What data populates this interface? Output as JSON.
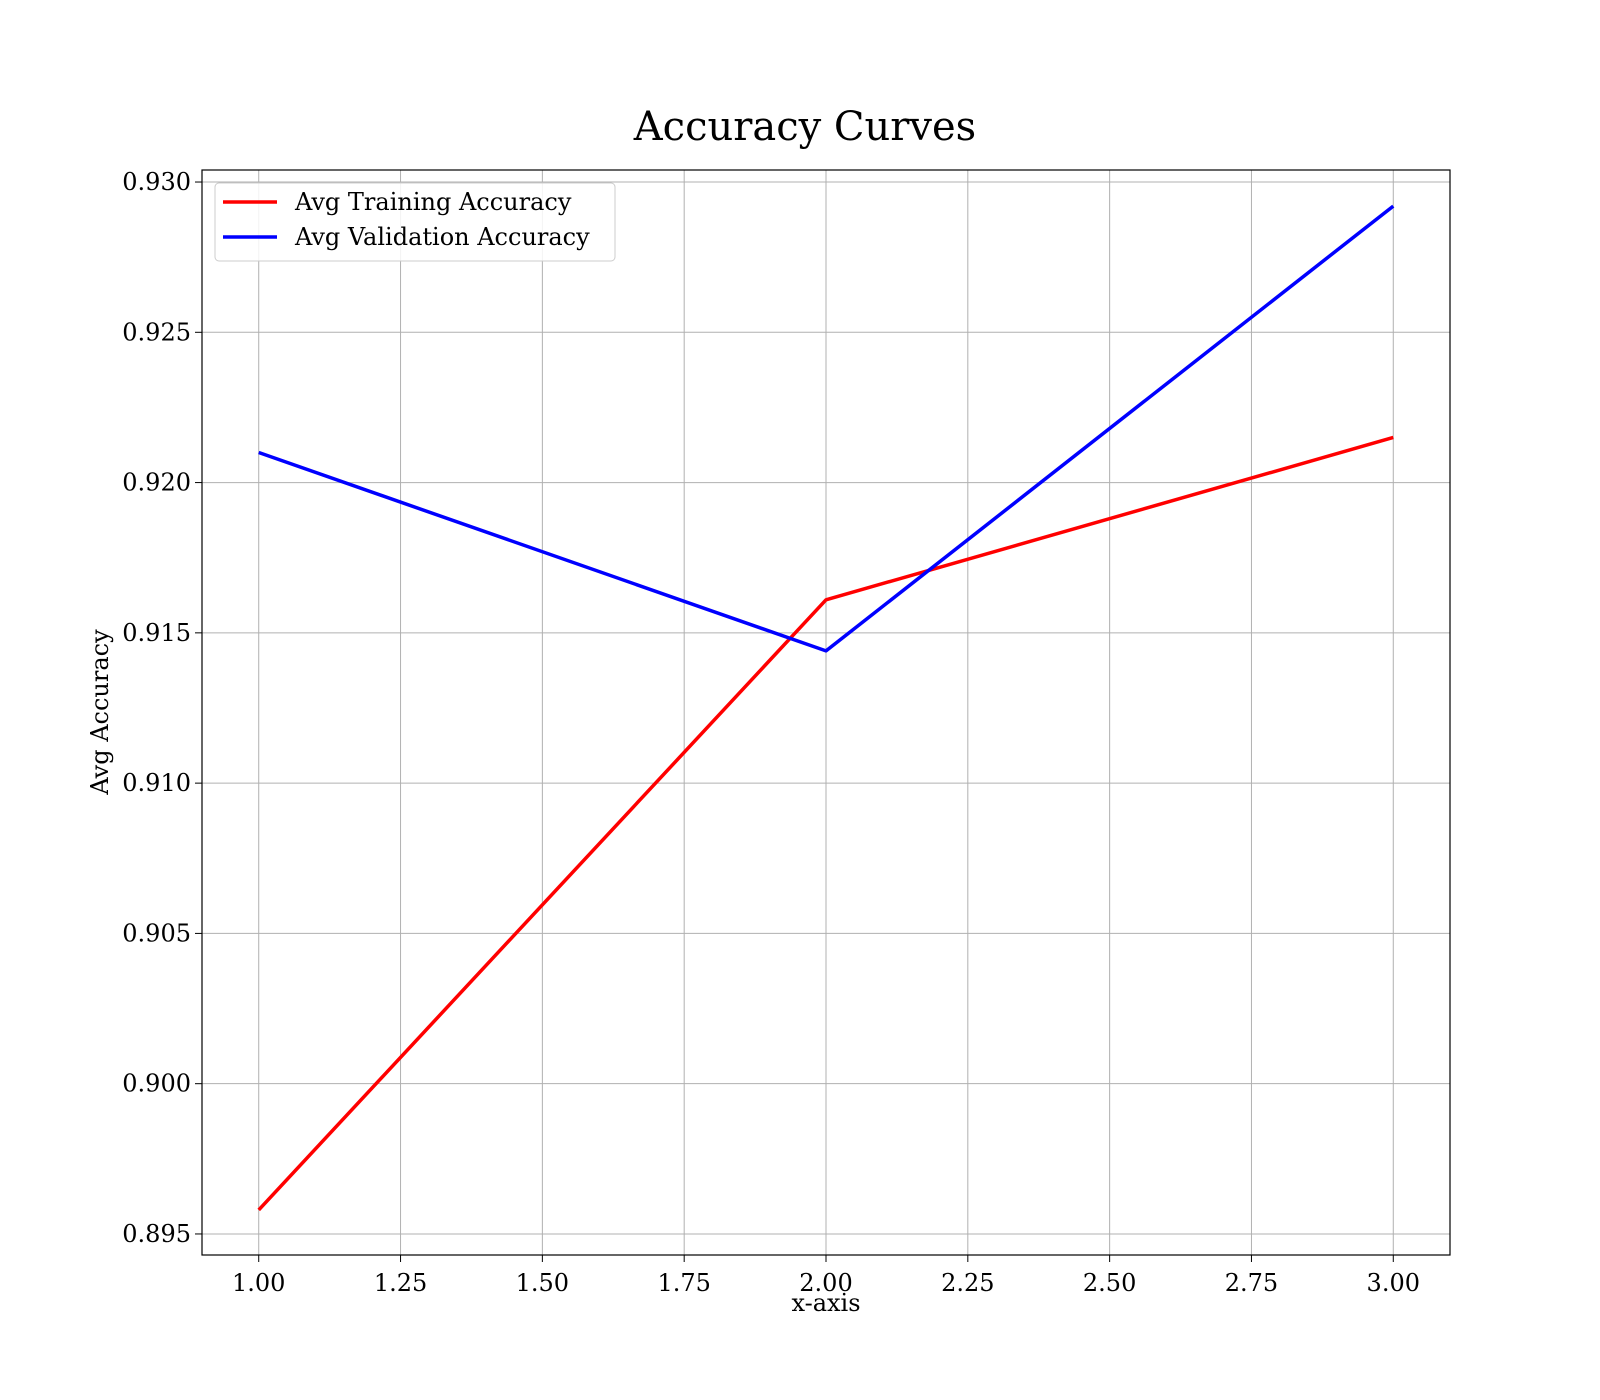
{
  "chart_data": {
    "type": "line",
    "title": "Accuracy Curves",
    "xlabel": "x-axis",
    "ylabel": "Avg Accuracy",
    "xlim": [
      0.9,
      3.1
    ],
    "ylim": [
      0.8943,
      0.9304
    ],
    "xticks": [
      1.0,
      1.25,
      1.5,
      1.75,
      2.0,
      2.25,
      2.5,
      2.75,
      3.0
    ],
    "xtick_labels": [
      "1.00",
      "1.25",
      "1.50",
      "1.75",
      "2.00",
      "2.25",
      "2.50",
      "2.75",
      "3.00"
    ],
    "yticks": [
      0.895,
      0.9,
      0.905,
      0.91,
      0.915,
      0.92,
      0.925,
      0.93
    ],
    "ytick_labels": [
      "0.895",
      "0.900",
      "0.905",
      "0.910",
      "0.915",
      "0.920",
      "0.925",
      "0.930"
    ],
    "grid": true,
    "legend_position": "top-left",
    "x": [
      1,
      2,
      3
    ],
    "series": [
      {
        "name": "Avg Training Accuracy",
        "color": "#ff0000",
        "values": [
          0.8958,
          0.9161,
          0.9215
        ]
      },
      {
        "name": "Avg Validation Accuracy",
        "color": "#0000ff",
        "values": [
          0.921,
          0.9144,
          0.9292
        ]
      }
    ]
  }
}
